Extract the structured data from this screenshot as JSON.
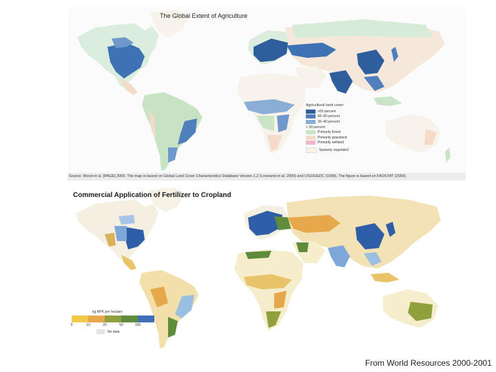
{
  "top_map": {
    "title": "The Global Extent of Agriculture",
    "source": "Source: Wood et al. [PAGE] 2000. The map is based on Global Land Cover Characteristics Database Version 1.2 (Loveland et al. 2000) and USGS/EDC (1999). The figure is based on FAOSTAT (2000).",
    "legend": {
      "heading": "Agricultural land cover",
      "items": [
        {
          "label": ">60 percent",
          "color": "#2e5e9c"
        },
        {
          "label": "40–60 percent",
          "color": "#4f80bd"
        },
        {
          "label": "30–40 percent",
          "color": "#8aaed6"
        }
      ],
      "subheading": "< 30 percent",
      "items2": [
        {
          "label": "Primarily forest",
          "color": "#c9e4c6"
        },
        {
          "label": "Primarily grassland",
          "color": "#f3dbc8"
        },
        {
          "label": "Primarily wetland",
          "color": "#f0b9c9"
        }
      ],
      "sparse": {
        "label": "Sparsely vegetated",
        "color": "#f8f4e8"
      }
    }
  },
  "bottom_map": {
    "title": "Commercial Application of Fertilizer to Cropland",
    "legend": {
      "heading": "kg NPK per hectare",
      "colors": [
        "#f2c84b",
        "#e6a84a",
        "#8fa03c",
        "#5f8c3a",
        "#3e6fb8"
      ],
      "ticks": [
        "0",
        "10",
        "20",
        "50",
        "100"
      ],
      "no_data": "No data"
    }
  },
  "credit": "From World Resources 2000-2001"
}
